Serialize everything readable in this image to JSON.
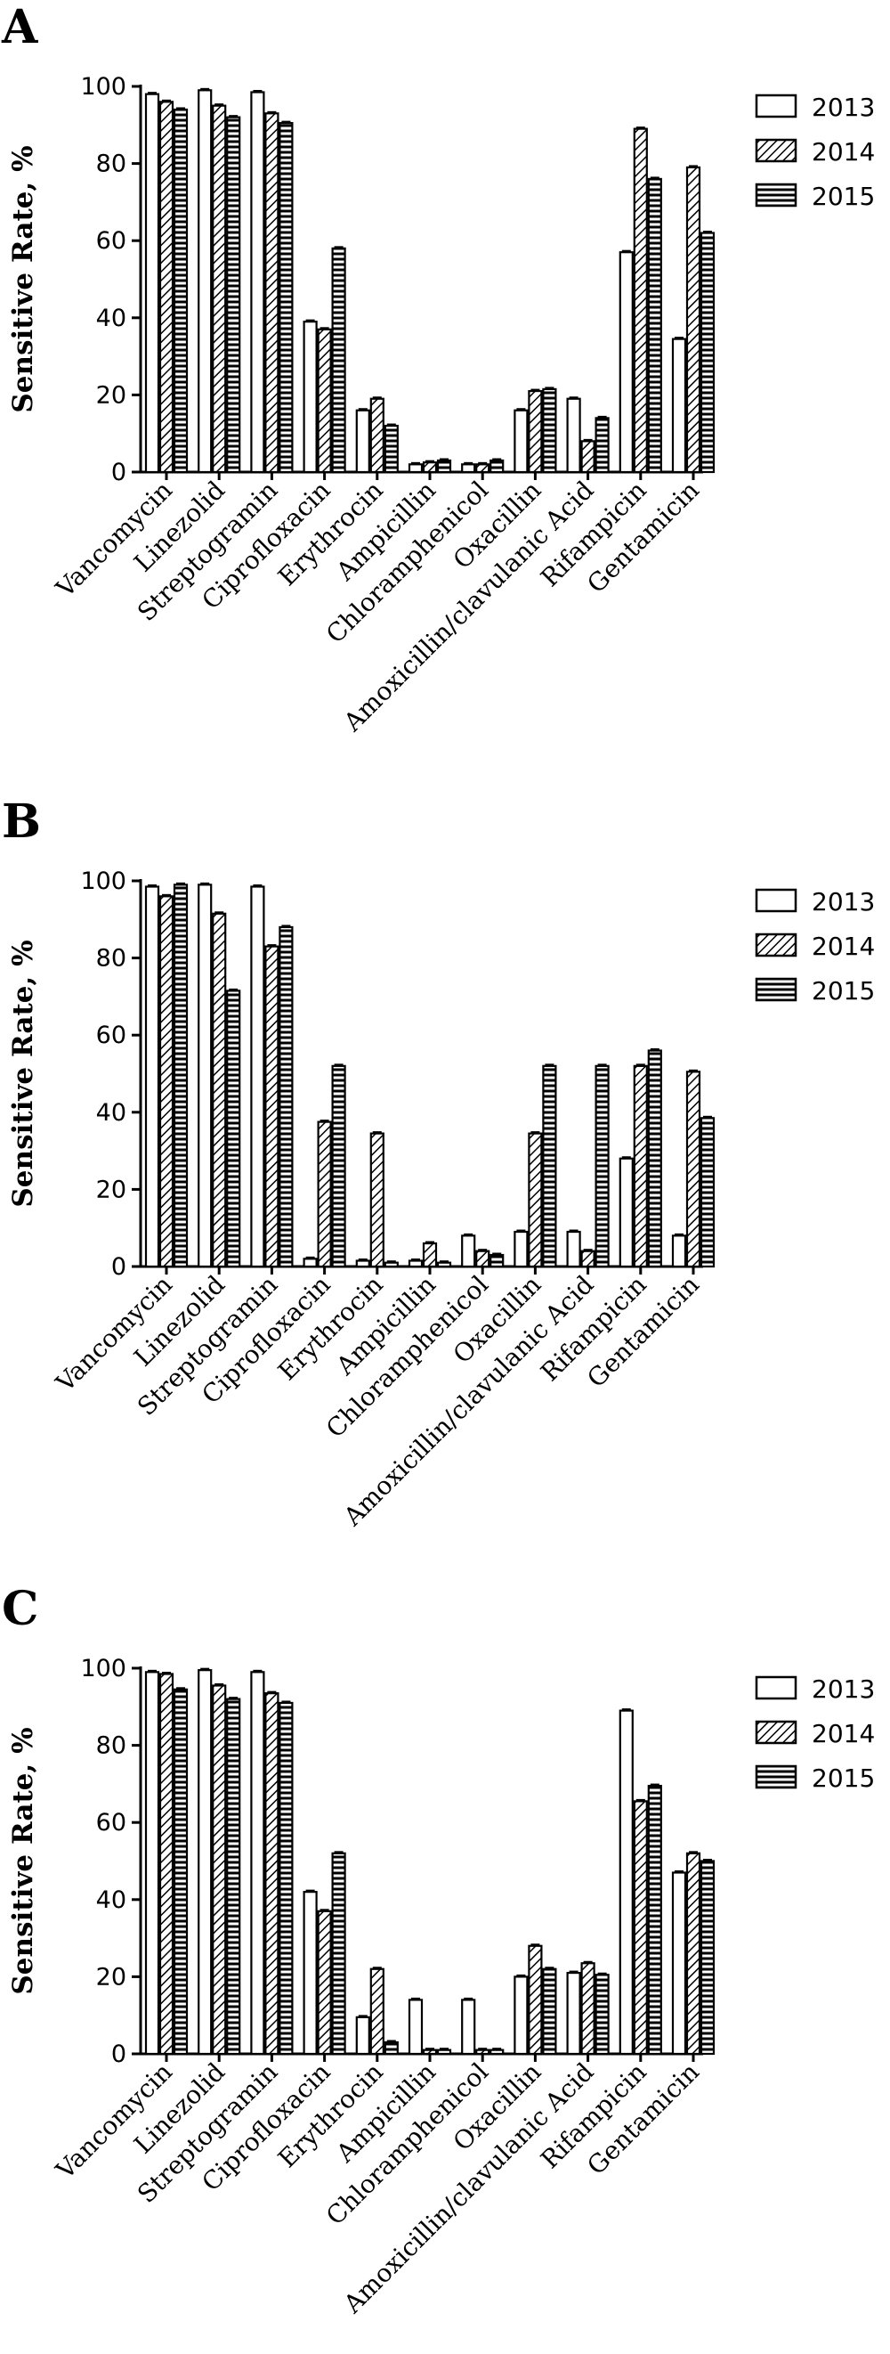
{
  "legend": [
    "2013",
    "2014",
    "2015"
  ],
  "chart_data": [
    {
      "panel": "A",
      "type": "bar",
      "ylabel": "Sensitive Rate, %",
      "ylim": [
        0,
        100
      ],
      "yticks": [
        0,
        20,
        40,
        60,
        80,
        100
      ],
      "categories": [
        "Vancomycin",
        "Linezolid",
        "Streptogramin",
        "Ciprofloxacin",
        "Erythrocin",
        "Ampicillin",
        "Chloramphenicol",
        "Oxacillin",
        "Amoxicillin/clavulanic Acid",
        "Rifampicin",
        "Gentamicin"
      ],
      "series": [
        {
          "name": "2013",
          "values": [
            98,
            99,
            98.5,
            39,
            16,
            2,
            2,
            16,
            19,
            57,
            34.5
          ]
        },
        {
          "name": "2014",
          "values": [
            96,
            95,
            93,
            37,
            19,
            2.5,
            2,
            21,
            8,
            89,
            79
          ]
        },
        {
          "name": "2015",
          "values": [
            94,
            92,
            90.5,
            58,
            12,
            3,
            3,
            21.5,
            14,
            76,
            62
          ]
        }
      ],
      "grid": false,
      "legend_position": "top-right"
    },
    {
      "panel": "B",
      "type": "bar",
      "ylabel": "Sensitive Rate, %",
      "ylim": [
        0,
        100
      ],
      "yticks": [
        0,
        20,
        40,
        60,
        80,
        100
      ],
      "categories": [
        "Vancomycin",
        "Linezolid",
        "Streptogramin",
        "Ciprofloxacin",
        "Erythrocin",
        "Ampicillin",
        "Chloramphenicol",
        "Oxacillin",
        "Amoxicillin/clavulanic Acid",
        "Rifampicin",
        "Gentamicin"
      ],
      "series": [
        {
          "name": "2013",
          "values": [
            98.5,
            99,
            98.5,
            2,
            1.5,
            1.5,
            8,
            9,
            9,
            28,
            8
          ]
        },
        {
          "name": "2014",
          "values": [
            96,
            91.5,
            83,
            37.5,
            34.5,
            6,
            4,
            34.5,
            4,
            52,
            50.5
          ]
        },
        {
          "name": "2015",
          "values": [
            99,
            71.5,
            88,
            52,
            1,
            1,
            3,
            52,
            52,
            56,
            38.5
          ]
        }
      ],
      "grid": false,
      "legend_position": "top-right"
    },
    {
      "panel": "C",
      "type": "bar",
      "ylabel": "Sensitive Rate, %",
      "ylim": [
        0,
        100
      ],
      "yticks": [
        0,
        20,
        40,
        60,
        80,
        100
      ],
      "categories": [
        "Vancomycin",
        "Linezolid",
        "Streptogramin",
        "Ciprofloxacin",
        "Erythrocin",
        "Ampicillin",
        "Chloramphenicol",
        "Oxacillin",
        "Amoxicillin/clavulanic Acid",
        "Rifampicin",
        "Gentamicin"
      ],
      "series": [
        {
          "name": "2013",
          "values": [
            99,
            99.5,
            99,
            42,
            9.5,
            14,
            14,
            20,
            21,
            89,
            47
          ]
        },
        {
          "name": "2014",
          "values": [
            98.5,
            95.5,
            93.5,
            37,
            22,
            1,
            1,
            28,
            23.5,
            65.5,
            52
          ]
        },
        {
          "name": "2015",
          "values": [
            94.5,
            92,
            91,
            52,
            3,
            1,
            1,
            22,
            20.5,
            69.5,
            50
          ]
        }
      ],
      "grid": false,
      "legend_position": "top-right"
    }
  ]
}
